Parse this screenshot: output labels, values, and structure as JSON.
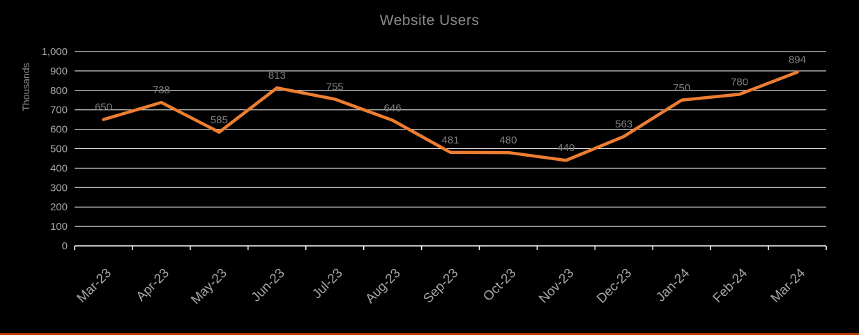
{
  "chart_data": {
    "type": "line",
    "title": "Website Users",
    "xlabel": "",
    "ylabel": "Thousands",
    "categories": [
      "Mar-23",
      "Apr-23",
      "May-23",
      "Jun-23",
      "Jul-23",
      "Aug-23",
      "Sep-23",
      "Oct-23",
      "Nov-23",
      "Dec-23",
      "Jan-24",
      "Feb-24",
      "Mar-24"
    ],
    "series": [
      {
        "name": "Website Users",
        "values": [
          650,
          738,
          585,
          813,
          755,
          646,
          481,
          480,
          440,
          563,
          750,
          780,
          894
        ]
      }
    ],
    "values": [
      650,
      738,
      585,
      813,
      755,
      646,
      481,
      480,
      440,
      563,
      750,
      780,
      894
    ],
    "data_labels": [
      "650",
      "738",
      "585",
      "813",
      "755",
      "646",
      "481",
      "480",
      "440",
      "563",
      "750",
      "780",
      "894"
    ],
    "ylim": [
      0,
      1000
    ],
    "ytick_interval": 100,
    "ytick_labels": [
      "0",
      "100",
      "200",
      "300",
      "400",
      "500",
      "600",
      "700",
      "800",
      "900",
      "1,000"
    ],
    "grid": true,
    "legend": "none",
    "colors": {
      "line": "#ED7D31",
      "background": "#000000",
      "gridline": "#FFFFFF",
      "axis": "#FFFFFF",
      "tick_text": "#A6A6A6",
      "data_label_text": "#7F7F7F",
      "title_text": "#8C8C8C",
      "bottom_border": "#B03A00"
    }
  }
}
